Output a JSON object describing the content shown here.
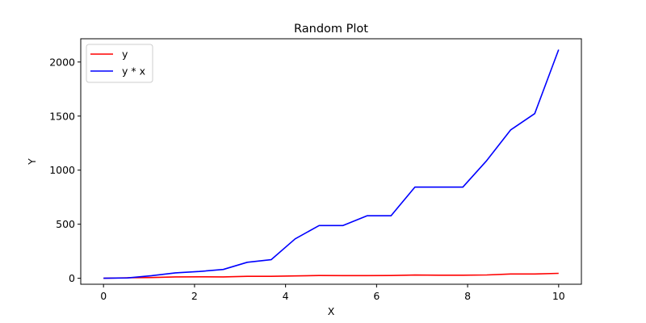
{
  "chart_data": {
    "type": "line",
    "title": "Random Plot",
    "xlabel": "X",
    "ylabel": "Y",
    "xlim": [
      -0.5,
      10.5
    ],
    "ylim": [
      -55,
      2215
    ],
    "xticks": [
      0,
      2,
      4,
      6,
      8,
      10
    ],
    "xtick_labels": [
      "0",
      "2",
      "4",
      "6",
      "8",
      "10"
    ],
    "yticks": [
      0,
      500,
      1000,
      1500,
      2000
    ],
    "ytick_labels": [
      "0",
      "500",
      "1000",
      "1500",
      "2000"
    ],
    "grid": false,
    "legend_position": "top-left",
    "x": [
      0,
      0.526,
      1.053,
      1.579,
      2.105,
      2.632,
      3.158,
      3.684,
      4.211,
      4.737,
      5.263,
      5.789,
      6.316,
      6.842,
      7.368,
      7.895,
      8.421,
      8.947,
      9.474,
      10
    ],
    "series": [
      {
        "name": "y",
        "color": "#ff0000",
        "values": [
          0,
          5,
          7,
          13,
          14,
          13,
          18,
          18,
          22,
          26,
          25,
          25,
          26,
          30,
          29,
          29,
          31,
          40,
          40,
          46
        ]
      },
      {
        "name": "y * x",
        "color": "#0000ff",
        "values": [
          0,
          3,
          24,
          50,
          63,
          82,
          148,
          172,
          365,
          488,
          488,
          578,
          578,
          843,
          843,
          843,
          1089,
          1373,
          1523,
          2114
        ]
      }
    ]
  }
}
